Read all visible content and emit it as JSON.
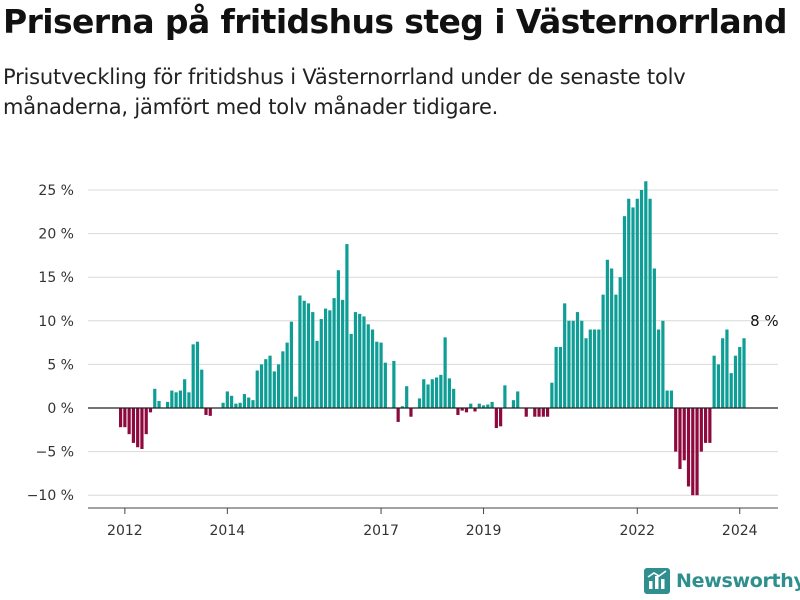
{
  "header": {
    "title": "Priserna på fritidshus steg i Västernorrland",
    "subtitle": "Prisutveckling för fritidshus i Västernorrland under de senaste tolv månaderna, jämfört med tolv månader tidigare."
  },
  "brand": {
    "name": "Newsworthy",
    "logo_icon": "bar-chart-logo-icon",
    "color": "#2f8f8f"
  },
  "chart_data": {
    "type": "bar",
    "ylabel": "",
    "xlabel": "",
    "ylim": [
      -11,
      27
    ],
    "y_ticks": [
      -10,
      -5,
      0,
      5,
      10,
      15,
      20,
      25
    ],
    "y_tick_labels": [
      "−10 %",
      "−5 %",
      "0 %",
      "5 %",
      "10 %",
      "15 %",
      "20 %",
      "25 %"
    ],
    "x_tick_labels": [
      "2012",
      "2014",
      "2017",
      "2019",
      "2022",
      "2024"
    ],
    "x_tick_positions": [
      "2012-01",
      "2014-01",
      "2017-01",
      "2019-01",
      "2022-01",
      "2024-01"
    ],
    "start_month": "2011-12",
    "grid": true,
    "positive_color": "#0e9e96",
    "negative_color": "#8e0a3e",
    "annotation": {
      "text": "8 %",
      "month": "2024-07",
      "value": 8
    },
    "values": [
      -2.2,
      -2.2,
      -3,
      -4,
      -4.5,
      -4.7,
      -3,
      -0.5,
      2.2,
      0.8,
      0,
      0.7,
      2,
      1.8,
      2,
      3.3,
      1.8,
      7.3,
      7.6,
      4.4,
      -0.8,
      -0.9,
      0,
      0,
      0.6,
      1.9,
      1.4,
      0.5,
      0.6,
      1.6,
      1.2,
      0.9,
      4.3,
      5,
      5.6,
      6,
      4.2,
      5,
      6.5,
      7.5,
      9.9,
      1.3,
      12.9,
      12.3,
      12,
      11,
      7.7,
      10.2,
      11.4,
      11.2,
      12.6,
      15.8,
      12.4,
      18.8,
      8.5,
      11,
      10.8,
      10.5,
      9.6,
      9,
      7.6,
      7.5,
      5.2,
      0,
      5.4,
      -1.6,
      0.2,
      2.5,
      -1,
      0,
      1.1,
      3.3,
      2.7,
      3.3,
      3.5,
      3.8,
      8.1,
      3.4,
      2.2,
      -0.8,
      -0.3,
      -0.5,
      0.5,
      -0.4,
      0.5,
      0.3,
      0.4,
      0.7,
      -2.3,
      -2.1,
      2.6,
      0,
      0.9,
      1.9,
      0,
      -1,
      0,
      -1,
      -1,
      -1,
      -1,
      2.9,
      7,
      7,
      12,
      10,
      10,
      11,
      10,
      8,
      9,
      9,
      9,
      13,
      17,
      16,
      13,
      15,
      22,
      24,
      23,
      24,
      25,
      26,
      24,
      16,
      9,
      10,
      2,
      2,
      -5,
      -7,
      -6,
      -9,
      -10,
      -10,
      -5,
      -4,
      -4,
      6,
      5,
      8,
      9,
      4,
      6,
      7,
      8
    ]
  }
}
